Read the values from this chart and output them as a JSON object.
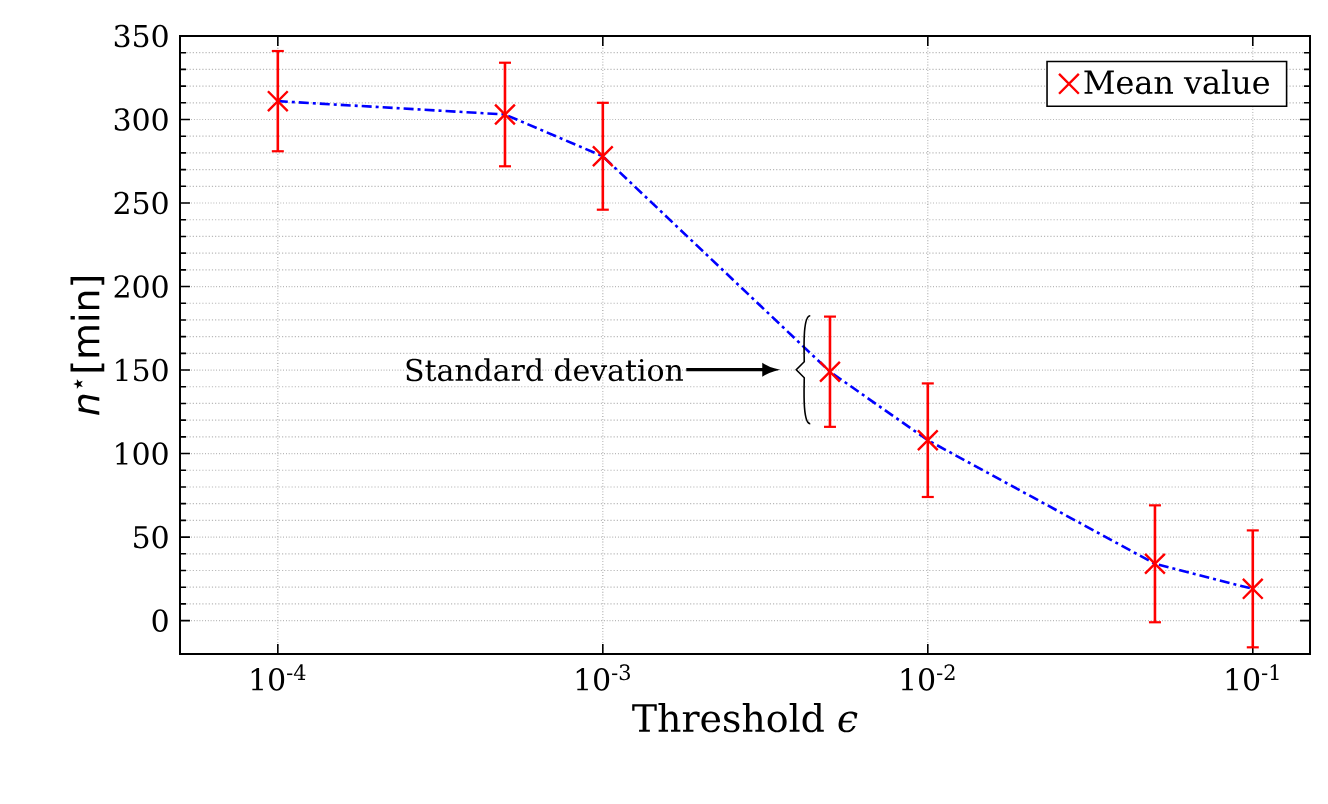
{
  "chart_data": {
    "type": "line",
    "xlabel": "Threshold *ϵ*",
    "ylabel": "*n*$^{⋆}$[min]",
    "x": [
      0.0001,
      0.0005,
      0.001,
      0.005,
      0.01,
      0.05,
      0.1
    ],
    "series": [
      {
        "color": "#0000ff",
        "line_style": "dashdot",
        "marker": "none",
        "values": [
          311,
          303,
          278,
          149,
          108,
          34,
          19
        ]
      },
      {
        "type": "scatter",
        "name": "Mean value",
        "color": "#ff0000",
        "marker": "cross",
        "values": [
          311,
          303,
          278,
          149,
          108,
          34,
          19
        ],
        "errors": [
          30,
          31,
          32,
          33,
          34,
          35,
          35
        ]
      }
    ],
    "log": "x",
    "xlim": [
      5e-05,
      0.15
    ],
    "xticks": [
      {
        "value": 0.0001,
        "label": "10$^{-4}$"
      },
      {
        "value": 0.001,
        "label": "10$^{-3}$"
      },
      {
        "value": 0.01,
        "label": "10$^{-2}$"
      },
      {
        "value": 0.1,
        "label": "10$^{-1}$"
      }
    ],
    "ylim": [
      -20,
      350
    ],
    "yticks": [
      0,
      50,
      100,
      150,
      200,
      250,
      300,
      350
    ],
    "grid": true,
    "legend": "top right",
    "annotations": [
      "Standard devation"
    ]
  }
}
